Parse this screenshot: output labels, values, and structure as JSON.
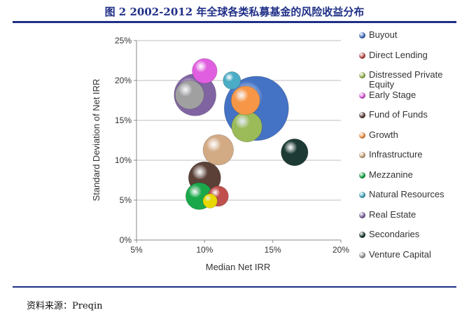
{
  "header": {
    "title": "图 2 2002-2012 年全球各类私募基金的风险收益分布"
  },
  "footer": {
    "source": "资料来源：Preqin"
  },
  "chart_data": {
    "type": "scatter",
    "xlabel": "Median Net IRR",
    "ylabel": "Standard Deviation of Net IRR",
    "xlim": [
      5,
      20
    ],
    "ylim": [
      0,
      25
    ],
    "x_ticks": [
      5,
      10,
      15,
      20
    ],
    "y_ticks": [
      0,
      5,
      10,
      15,
      20,
      25
    ],
    "x_tick_labels": [
      "5%",
      "10%",
      "15%",
      "20%"
    ],
    "y_tick_labels": [
      "0%",
      "5%",
      "10%",
      "15%",
      "20%",
      "25%"
    ],
    "grid": "horizontal",
    "legend_position": "right",
    "series": [
      {
        "name": "Buyout",
        "color": "#4472c4",
        "x": 13.8,
        "y": 16.5,
        "size": 40
      },
      {
        "name": "Direct Lending",
        "color": "#c0504d",
        "x": 11.0,
        "y": 5.5,
        "size": 4
      },
      {
        "name": "Distressed Private Equity",
        "color": "#9bbb59",
        "x": 13.1,
        "y": 14.2,
        "size": 9
      },
      {
        "name": "Early Stage",
        "color": "#e05ee0",
        "x": 10.0,
        "y": 21.2,
        "size": 6
      },
      {
        "name": "Fund of Funds",
        "color": "#5a4037",
        "x": 10.0,
        "y": 7.8,
        "size": 10
      },
      {
        "name": "Growth",
        "color": "#f79646",
        "x": 13.0,
        "y": 17.5,
        "size": 8
      },
      {
        "name": "Infrastructure",
        "color": "#d2aa84",
        "x": 11.0,
        "y": 11.3,
        "size": 9
      },
      {
        "name": "Mezzanine",
        "color": "#1aa84a",
        "x": 9.6,
        "y": 5.5,
        "size": 7
      },
      {
        "name": "Natural Resources",
        "color": "#4bacc6",
        "x": 12.0,
        "y": 20.0,
        "size": 3
      },
      {
        "name": "Real Estate",
        "color": "#8064a2",
        "x": 9.3,
        "y": 18.2,
        "size": 17
      },
      {
        "name": "Secondaries",
        "color": "#1d3b34",
        "x": 16.6,
        "y": 11.0,
        "size": 7
      },
      {
        "name": "Venture Capital",
        "color": "#a0a0a0",
        "x": 8.9,
        "y": 18.2,
        "size": 8
      },
      {
        "name": "",
        "color": "#e8d800",
        "x": 10.4,
        "y": 4.9,
        "size": 2
      }
    ]
  }
}
